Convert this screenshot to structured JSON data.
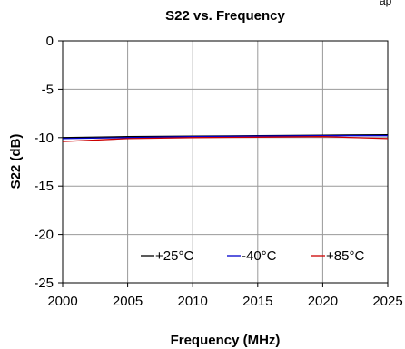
{
  "corner_text": "ap",
  "chart_data": {
    "type": "line",
    "title": "S22 vs. Frequency",
    "xlabel": "Frequency (MHz)",
    "ylabel": "S22 (dB)",
    "xlim": [
      2000,
      2025
    ],
    "ylim": [
      -25,
      0
    ],
    "x_ticks": [
      2000,
      2005,
      2010,
      2015,
      2020,
      2025
    ],
    "y_ticks": [
      0,
      -5,
      -10,
      -15,
      -20,
      -25
    ],
    "x_tick_labels": [
      "2000",
      "2005",
      "2010",
      "2015",
      "2020",
      "2025"
    ],
    "y_tick_labels": [
      "0",
      "-5",
      "-10",
      "-15",
      "-20",
      "-25"
    ],
    "grid": true,
    "legend_position": "bottom-right",
    "series": [
      {
        "name": "+25°C",
        "color": "#000000",
        "x": [
          2000,
          2005,
          2010,
          2015,
          2020,
          2025
        ],
        "y": [
          -10.0,
          -9.9,
          -9.85,
          -9.8,
          -9.75,
          -9.7
        ]
      },
      {
        "name": "-40°C",
        "color": "#0000cc",
        "x": [
          2000,
          2005,
          2010,
          2015,
          2020,
          2025
        ],
        "y": [
          -10.1,
          -10.0,
          -9.9,
          -9.85,
          -9.8,
          -9.8
        ]
      },
      {
        "name": "+85°C",
        "color": "#cc0000",
        "x": [
          2000,
          2005,
          2010,
          2015,
          2020,
          2025
        ],
        "y": [
          -10.4,
          -10.1,
          -10.0,
          -9.95,
          -9.9,
          -10.1
        ]
      }
    ]
  }
}
